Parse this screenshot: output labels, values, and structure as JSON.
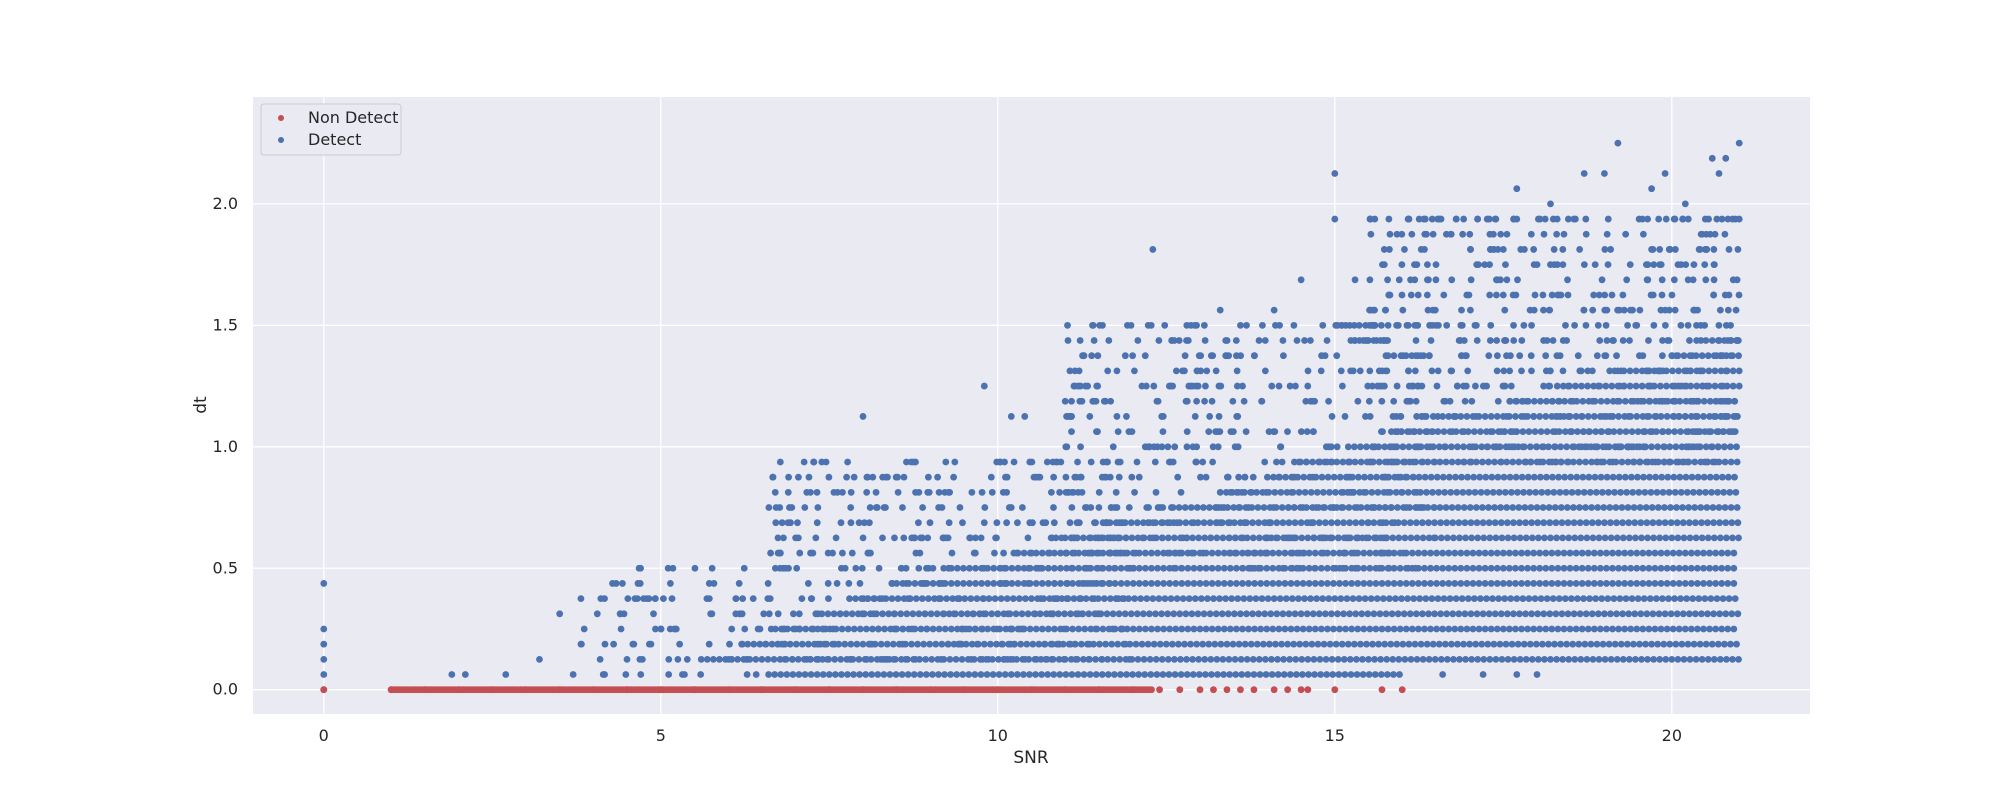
{
  "chart_data": {
    "type": "scatter",
    "title": "",
    "xlabel": "SNR",
    "ylabel": "dt",
    "xlim": [
      -1.05,
      22.05
    ],
    "ylim": [
      -0.1,
      2.44
    ],
    "x_ticks": [
      0,
      5,
      10,
      15,
      20
    ],
    "x_tick_labels": [
      "0",
      "5",
      "10",
      "15",
      "20"
    ],
    "y_ticks": [
      0.0,
      0.5,
      1.0,
      1.5,
      2.0
    ],
    "y_tick_labels": [
      "0.0",
      "0.5",
      "1.0",
      "1.5",
      "2.0"
    ],
    "grid": true,
    "legend_position": "top-left",
    "series": [
      {
        "name": "Non Detect",
        "color": "#c44e52",
        "points": [
          [
            0,
            0
          ],
          [
            1.0,
            0
          ],
          [
            1.5,
            0
          ],
          [
            2.0,
            0
          ],
          [
            2.5,
            0
          ],
          [
            3.0,
            0
          ],
          [
            3.5,
            0
          ],
          [
            4.0,
            0
          ],
          [
            4.5,
            0
          ],
          [
            5.0,
            0
          ],
          [
            5.5,
            0
          ],
          [
            6.0,
            0
          ],
          [
            6.5,
            0
          ],
          [
            7.0,
            0
          ],
          [
            7.5,
            0
          ],
          [
            8.0,
            0
          ],
          [
            8.5,
            0
          ],
          [
            9.0,
            0
          ],
          [
            9.5,
            0
          ],
          [
            10.0,
            0
          ],
          [
            10.5,
            0
          ],
          [
            11.0,
            0
          ],
          [
            11.5,
            0
          ],
          [
            12.0,
            0
          ],
          [
            12.4,
            0
          ],
          [
            12.7,
            0
          ],
          [
            13.0,
            0
          ],
          [
            13.2,
            0
          ],
          [
            13.4,
            0
          ],
          [
            13.6,
            0
          ],
          [
            13.8,
            0
          ],
          [
            14.1,
            0
          ],
          [
            14.3,
            0
          ],
          [
            14.5,
            0
          ],
          [
            14.6,
            0
          ],
          [
            15.0,
            0
          ],
          [
            15.7,
            0
          ],
          [
            16.0,
            0
          ]
        ]
      },
      {
        "name": "Detect",
        "color": "#4c72b0",
        "points": [
          [
            0,
            0.0
          ],
          [
            0,
            0.0625
          ],
          [
            0,
            0.125
          ],
          [
            0,
            0.1875
          ],
          [
            0,
            0.25
          ],
          [
            0,
            0.4375
          ],
          [
            1.9,
            0.0625
          ],
          [
            2.1,
            0.0625
          ],
          [
            2.7,
            0.0625
          ],
          [
            3.2,
            0.125
          ],
          [
            3.5,
            0.3125
          ],
          [
            3.7,
            0.0625
          ],
          [
            4.1,
            0.125
          ],
          [
            4.3,
            0.1875
          ],
          [
            4.4,
            0.3125
          ],
          [
            4.6,
            0.1875
          ],
          [
            4.7,
            0.5
          ],
          [
            5.2,
            0.25
          ],
          [
            6.7,
            0.5
          ],
          [
            6.8,
            0.6875
          ],
          [
            7.0,
            0.625
          ],
          [
            7.3,
            0.625
          ],
          [
            8.0,
            1.125
          ],
          [
            9.8,
            1.25
          ],
          [
            10.2,
            1.125
          ],
          [
            10.4,
            1.125
          ],
          [
            11.0,
            1.1875
          ],
          [
            11.3,
            1.25
          ],
          [
            12.0,
            1.375
          ],
          [
            12.3,
            1.8125
          ],
          [
            12.8,
            1.4375
          ],
          [
            13.3,
            1.5625
          ],
          [
            13.6,
            1.5
          ],
          [
            14.1,
            1.5625
          ],
          [
            14.5,
            1.6875
          ],
          [
            15.0,
            1.9375
          ],
          [
            15.0,
            2.125
          ],
          [
            15.3,
            1.6875
          ],
          [
            15.8,
            1.625
          ],
          [
            16.5,
            1.6875
          ],
          [
            16.8,
            1.9375
          ],
          [
            17.1,
            1.5
          ],
          [
            17.5,
            1.8125
          ],
          [
            17.7,
            1.9375
          ],
          [
            17.7,
            2.0625
          ],
          [
            18.2,
            2.0
          ],
          [
            18.7,
            2.125
          ],
          [
            19.0,
            2.125
          ],
          [
            19.2,
            2.25
          ],
          [
            19.7,
            2.0625
          ],
          [
            19.9,
            2.125
          ],
          [
            20.2,
            2.0
          ],
          [
            20.6,
            2.1875
          ],
          [
            20.7,
            2.125
          ],
          [
            20.8,
            2.1875
          ],
          [
            21.0,
            2.25
          ],
          [
            21.0,
            1.9375
          ],
          [
            20.9,
            1.9375
          ],
          [
            16.6,
            0.0625
          ],
          [
            17.2,
            0.0625
          ],
          [
            17.7,
            0.0625
          ],
          [
            18.0,
            0.0625
          ]
        ],
        "bands": [
          {
            "y": 0.0625,
            "x_start": 6.6,
            "x_end": 16.0
          },
          {
            "y": 0.125,
            "x_start": 5.6,
            "x_end": 21.0
          },
          {
            "y": 0.1875,
            "x_start": 6.2,
            "x_end": 21.0
          },
          {
            "y": 0.25,
            "x_start": 6.7,
            "x_end": 21.0
          },
          {
            "y": 0.3125,
            "x_start": 7.3,
            "x_end": 21.0
          },
          {
            "y": 0.375,
            "x_start": 7.8,
            "x_end": 21.0
          },
          {
            "y": 0.4375,
            "x_start": 8.5,
            "x_end": 21.0
          },
          {
            "y": 0.5,
            "x_start": 9.4,
            "x_end": 21.0
          },
          {
            "y": 0.5625,
            "x_start": 10.3,
            "x_end": 21.0
          },
          {
            "y": 0.625,
            "x_start": 11.0,
            "x_end": 21.0
          },
          {
            "y": 0.6875,
            "x_start": 11.8,
            "x_end": 21.0
          },
          {
            "y": 0.75,
            "x_start": 12.6,
            "x_end": 21.0
          },
          {
            "y": 0.8125,
            "x_start": 13.3,
            "x_end": 21.0
          },
          {
            "y": 0.875,
            "x_start": 14.0,
            "x_end": 21.0
          },
          {
            "y": 0.9375,
            "x_start": 14.4,
            "x_end": 21.0
          },
          {
            "y": 1.0,
            "x_start": 15.2,
            "x_end": 21.0
          },
          {
            "y": 1.0625,
            "x_start": 15.9,
            "x_end": 21.0
          },
          {
            "y": 1.125,
            "x_start": 16.6,
            "x_end": 21.0
          },
          {
            "y": 1.1875,
            "x_start": 17.6,
            "x_end": 21.0
          },
          {
            "y": 1.25,
            "x_start": 18.3,
            "x_end": 21.0
          },
          {
            "y": 1.3125,
            "x_start": 19.2,
            "x_end": 21.0
          },
          {
            "y": 1.375,
            "x_start": 20.0,
            "x_end": 21.0
          },
          {
            "y": 1.4375,
            "x_start": 20.6,
            "x_end": 21.0
          }
        ],
        "scatter_regions": [
          {
            "y_min": 0.0625,
            "y_max": 0.5,
            "x_min": 3.8,
            "x_max": 6.6,
            "count": 90
          },
          {
            "y_min": 0.125,
            "y_max": 0.9375,
            "x_min": 6.6,
            "x_max": 12.0,
            "count": 420
          },
          {
            "y_min": 0.5,
            "y_max": 1.5,
            "x_min": 11.0,
            "x_max": 16.5,
            "count": 520
          },
          {
            "y_min": 0.9375,
            "y_max": 1.9375,
            "x_min": 15.5,
            "x_max": 21.0,
            "count": 620
          }
        ]
      }
    ]
  }
}
